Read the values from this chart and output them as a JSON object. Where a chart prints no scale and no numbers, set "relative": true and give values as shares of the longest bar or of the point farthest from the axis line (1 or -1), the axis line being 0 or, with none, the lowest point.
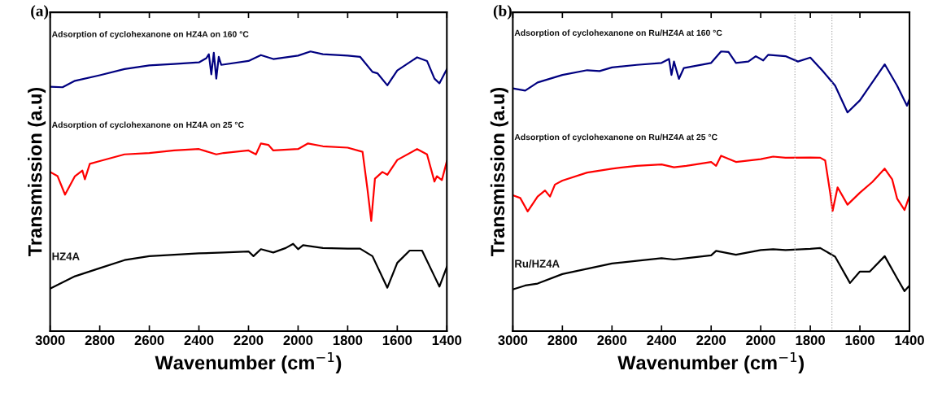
{
  "chart_data": [
    {
      "type": "line",
      "title": "(a)",
      "xlabel": "Wavenumber (cm$^{−1}$)",
      "ylabel": "Transmission (a.u)",
      "relative": true,
      "xlim": [
        3000,
        1400
      ],
      "xticks": [
        3000,
        2800,
        2600,
        2400,
        2200,
        2000,
        1800,
        1600,
        1400
      ],
      "grid": false,
      "legend": false,
      "marker": "none",
      "line_style": "solid",
      "series": [
        {
          "name": "Adsorption of cyclohexanone on HZ4A on 160 °C",
          "color": "#000080",
          "x": [
            3000,
            2950,
            2900,
            2800,
            2700,
            2600,
            2500,
            2400,
            2370,
            2360,
            2350,
            2340,
            2330,
            2320,
            2310,
            2200,
            2150,
            2100,
            2000,
            1950,
            1900,
            1800,
            1750,
            1700,
            1680,
            1640,
            1600,
            1520,
            1480,
            1450,
            1430,
            1400
          ],
          "values": [
            0.874,
            0.872,
            0.895,
            0.915,
            0.937,
            0.95,
            0.955,
            0.961,
            0.976,
            0.99,
            0.918,
            0.995,
            0.903,
            0.981,
            0.952,
            0.966,
            0.987,
            0.973,
            0.985,
            1.0,
            0.99,
            0.985,
            0.981,
            0.927,
            0.922,
            0.879,
            0.932,
            0.979,
            0.966,
            0.903,
            0.886,
            0.937
          ]
        },
        {
          "name": "Adsorption of cyclohexanone on HZ4A on 25 °C",
          "color": "#ff0000",
          "x": [
            3000,
            2970,
            2940,
            2900,
            2870,
            2860,
            2840,
            2800,
            2700,
            2600,
            2500,
            2400,
            2330,
            2300,
            2200,
            2170,
            2150,
            2120,
            2100,
            2000,
            1960,
            1900,
            1800,
            1740,
            1720,
            1705,
            1690,
            1660,
            1640,
            1600,
            1520,
            1480,
            1450,
            1440,
            1420,
            1400
          ],
          "values": [
            0.569,
            0.554,
            0.488,
            0.554,
            0.574,
            0.543,
            0.598,
            0.608,
            0.632,
            0.637,
            0.646,
            0.651,
            0.632,
            0.637,
            0.646,
            0.632,
            0.671,
            0.666,
            0.646,
            0.651,
            0.671,
            0.661,
            0.656,
            0.641,
            0.506,
            0.394,
            0.545,
            0.569,
            0.559,
            0.612,
            0.651,
            0.632,
            0.535,
            0.554,
            0.54,
            0.608
          ]
        },
        {
          "name": "HZ4A",
          "color": "#000000",
          "x": [
            3000,
            2900,
            2800,
            2700,
            2600,
            2500,
            2400,
            2300,
            2200,
            2180,
            2150,
            2100,
            2050,
            2020,
            2000,
            1980,
            1900,
            1800,
            1750,
            1700,
            1640,
            1600,
            1550,
            1500,
            1450,
            1430,
            1400
          ],
          "values": [
            0.152,
            0.196,
            0.225,
            0.254,
            0.268,
            0.273,
            0.278,
            0.281,
            0.285,
            0.268,
            0.293,
            0.281,
            0.297,
            0.312,
            0.293,
            0.307,
            0.297,
            0.295,
            0.295,
            0.268,
            0.155,
            0.244,
            0.288,
            0.288,
            0.196,
            0.159,
            0.23
          ]
        }
      ]
    },
    {
      "type": "line",
      "title": "(b)",
      "xlabel": "Wavenumber (cm$^{−1}$)",
      "ylabel": "Transmission (a.u)",
      "relative": true,
      "xlim": [
        3000,
        1400
      ],
      "xticks": [
        3000,
        2800,
        2600,
        2400,
        2200,
        2000,
        1800,
        1600,
        1400
      ],
      "grid": false,
      "legend": false,
      "marker": "none",
      "line_style": "solid",
      "ref_lines": [
        {
          "axis": "x",
          "value": 1862,
          "color": "#aaaaaa",
          "line_style": "dotted"
        },
        {
          "axis": "x",
          "value": 1713,
          "color": "#aaaaaa",
          "line_style": "dotted"
        }
      ],
      "series": [
        {
          "name": "Adsorption of cyclohexanone on Ru/HZ4A at 160 °C",
          "color": "#000080",
          "x": [
            3000,
            2950,
            2900,
            2800,
            2700,
            2650,
            2600,
            2500,
            2400,
            2370,
            2360,
            2350,
            2330,
            2310,
            2200,
            2160,
            2130,
            2100,
            2050,
            2020,
            1990,
            1970,
            1900,
            1850,
            1800,
            1750,
            1700,
            1650,
            1600,
            1500,
            1450,
            1410,
            1400
          ],
          "values": [
            0.868,
            0.86,
            0.889,
            0.916,
            0.933,
            0.93,
            0.943,
            0.952,
            0.959,
            0.973,
            0.916,
            0.964,
            0.902,
            0.941,
            0.959,
            1.0,
            0.998,
            0.959,
            0.964,
            0.983,
            0.968,
            0.988,
            0.983,
            0.964,
            0.978,
            0.93,
            0.878,
            0.782,
            0.825,
            0.954,
            0.878,
            0.806,
            0.83
          ]
        },
        {
          "name": "Adsorption of cyclohexanone on Ru/HZ4A at 25 °C",
          "color": "#ff0000",
          "x": [
            3000,
            2970,
            2940,
            2900,
            2870,
            2850,
            2830,
            2800,
            2700,
            2600,
            2500,
            2400,
            2350,
            2300,
            2200,
            2180,
            2160,
            2100,
            2000,
            1950,
            1900,
            1800,
            1760,
            1740,
            1720,
            1710,
            1690,
            1650,
            1600,
            1550,
            1500,
            1470,
            1450,
            1420,
            1400
          ],
          "values": [
            0.486,
            0.476,
            0.428,
            0.481,
            0.503,
            0.481,
            0.524,
            0.538,
            0.567,
            0.581,
            0.591,
            0.596,
            0.586,
            0.591,
            0.605,
            0.591,
            0.627,
            0.605,
            0.615,
            0.624,
            0.62,
            0.621,
            0.62,
            0.61,
            0.495,
            0.43,
            0.514,
            0.452,
            0.495,
            0.533,
            0.581,
            0.543,
            0.474,
            0.433,
            0.484
          ]
        },
        {
          "name": "Ru/HZ4A",
          "color": "#000000",
          "x": [
            3000,
            2950,
            2900,
            2800,
            2700,
            2600,
            2500,
            2400,
            2350,
            2300,
            2200,
            2180,
            2100,
            2000,
            1950,
            1900,
            1800,
            1760,
            1700,
            1640,
            1600,
            1560,
            1500,
            1450,
            1420,
            1400
          ],
          "values": [
            0.149,
            0.163,
            0.17,
            0.204,
            0.223,
            0.242,
            0.251,
            0.261,
            0.256,
            0.261,
            0.271,
            0.287,
            0.273,
            0.29,
            0.293,
            0.29,
            0.294,
            0.297,
            0.266,
            0.172,
            0.213,
            0.213,
            0.268,
            0.189,
            0.143,
            0.163
          ]
        }
      ]
    }
  ]
}
